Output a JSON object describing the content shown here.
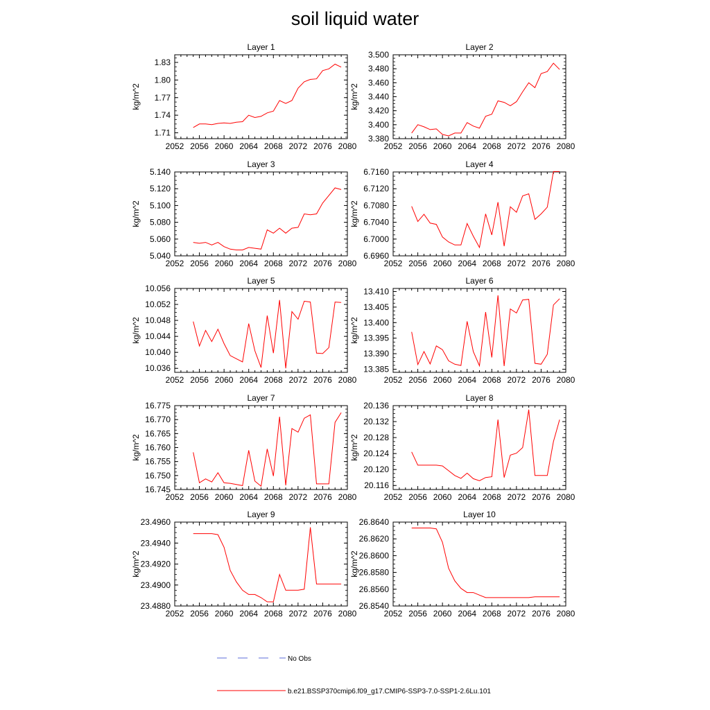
{
  "title": "soil liquid water",
  "chart_data": [
    {
      "type": "line",
      "title": "Layer 1",
      "ylabel": "kg/m^2",
      "xlim": [
        2052,
        2080
      ],
      "ylim": [
        1.7,
        1.843
      ],
      "xticks": [
        "2052",
        "2056",
        "2060",
        "2064",
        "2068",
        "2072",
        "2076",
        "2080"
      ],
      "yticks": [
        "1.71",
        "1.74",
        "1.77",
        "1.80",
        "1.83"
      ],
      "x": [
        2055,
        2056,
        2057,
        2058,
        2059,
        2060,
        2061,
        2062,
        2063,
        2064,
        2065,
        2066,
        2067,
        2068,
        2069,
        2070,
        2071,
        2072,
        2073,
        2074,
        2075,
        2076,
        2077,
        2078,
        2079
      ],
      "series": [
        {
          "name": "b.e21.BSSP370cmip6.f09_g17.CMIP6-SSP3-7.0-SSP1-2.6Lu.101",
          "color": "#ff0000",
          "values": [
            1.719,
            1.725,
            1.725,
            1.724,
            1.726,
            1.727,
            1.726,
            1.728,
            1.729,
            1.74,
            1.736,
            1.738,
            1.744,
            1.747,
            1.765,
            1.76,
            1.765,
            1.786,
            1.797,
            1.801,
            1.802,
            1.816,
            1.819,
            1.827,
            1.822
          ]
        }
      ]
    },
    {
      "type": "line",
      "title": "Layer 2",
      "ylabel": "kg/m^2",
      "xlim": [
        2052,
        2080
      ],
      "ylim": [
        3.38,
        3.5
      ],
      "xticks": [
        "2052",
        "2056",
        "2060",
        "2064",
        "2068",
        "2072",
        "2076",
        "2080"
      ],
      "yticks": [
        "3.380",
        "3.400",
        "3.420",
        "3.440",
        "3.460",
        "3.480",
        "3.500"
      ],
      "x": [
        2055,
        2056,
        2057,
        2058,
        2059,
        2060,
        2061,
        2062,
        2063,
        2064,
        2065,
        2066,
        2067,
        2068,
        2069,
        2070,
        2071,
        2072,
        2073,
        2074,
        2075,
        2076,
        2077,
        2078,
        2079
      ],
      "series": [
        {
          "name": "b.e21.BSSP370cmip6.f09_g17.CMIP6-SSP3-7.0-SSP1-2.6Lu.101",
          "color": "#ff0000",
          "values": [
            3.388,
            3.4,
            3.397,
            3.393,
            3.394,
            3.386,
            3.384,
            3.388,
            3.388,
            3.403,
            3.398,
            3.395,
            3.412,
            3.415,
            3.434,
            3.432,
            3.427,
            3.433,
            3.447,
            3.46,
            3.453,
            3.473,
            3.476,
            3.488,
            3.479
          ]
        }
      ]
    },
    {
      "type": "line",
      "title": "Layer 3",
      "ylabel": "kg/m^2",
      "xlim": [
        2052,
        2080
      ],
      "ylim": [
        5.04,
        5.14
      ],
      "xticks": [
        "2052",
        "2056",
        "2060",
        "2064",
        "2068",
        "2072",
        "2076",
        "2080"
      ],
      "yticks": [
        "5.040",
        "5.060",
        "5.080",
        "5.100",
        "5.120",
        "5.140"
      ],
      "x": [
        2055,
        2056,
        2057,
        2058,
        2059,
        2060,
        2061,
        2062,
        2063,
        2064,
        2065,
        2066,
        2067,
        2068,
        2069,
        2070,
        2071,
        2072,
        2073,
        2074,
        2075,
        2076,
        2077,
        2078,
        2079
      ],
      "series": [
        {
          "name": "b.e21.BSSP370cmip6.f09_g17.CMIP6-SSP3-7.0-SSP1-2.6Lu.101",
          "color": "#ff0000",
          "values": [
            5.056,
            5.055,
            5.056,
            5.053,
            5.056,
            5.051,
            5.048,
            5.047,
            5.047,
            5.05,
            5.049,
            5.048,
            5.071,
            5.067,
            5.073,
            5.067,
            5.073,
            5.074,
            5.09,
            5.089,
            5.09,
            5.103,
            5.112,
            5.121,
            5.119
          ]
        }
      ]
    },
    {
      "type": "line",
      "title": "Layer 4",
      "ylabel": "kg/m^2",
      "xlim": [
        2052,
        2080
      ],
      "ylim": [
        6.696,
        6.716
      ],
      "xticks": [
        "2052",
        "2056",
        "2060",
        "2064",
        "2068",
        "2072",
        "2076",
        "2080"
      ],
      "yticks": [
        "6.6960",
        "6.7000",
        "6.7040",
        "6.7080",
        "6.7120",
        "6.7160"
      ],
      "x": [
        2055,
        2056,
        2057,
        2058,
        2059,
        2060,
        2061,
        2062,
        2063,
        2064,
        2065,
        2066,
        2067,
        2068,
        2069,
        2070,
        2071,
        2072,
        2073,
        2074,
        2075,
        2076,
        2077,
        2078,
        2079
      ],
      "series": [
        {
          "name": "b.e21.BSSP370cmip6.f09_g17.CMIP6-SSP3-7.0-SSP1-2.6Lu.101",
          "color": "#ff0000",
          "values": [
            6.7078,
            6.7042,
            6.7059,
            6.7038,
            6.7035,
            6.7005,
            6.6993,
            6.6986,
            6.6986,
            6.7037,
            6.7007,
            6.698,
            6.706,
            6.701,
            6.7088,
            6.6983,
            6.7077,
            6.7064,
            6.7103,
            6.7108,
            6.7047,
            6.706,
            6.7076,
            6.7161,
            6.7161
          ]
        }
      ]
    },
    {
      "type": "line",
      "title": "Layer 5",
      "ylabel": "kg/m^2",
      "xlim": [
        2052,
        2080
      ],
      "ylim": [
        10.035,
        10.056
      ],
      "xticks": [
        "2052",
        "2056",
        "2060",
        "2064",
        "2068",
        "2072",
        "2076",
        "2080"
      ],
      "yticks": [
        "10.036",
        "10.040",
        "10.044",
        "10.048",
        "10.052",
        "10.056"
      ],
      "x": [
        2055,
        2056,
        2057,
        2058,
        2059,
        2060,
        2061,
        2062,
        2063,
        2064,
        2065,
        2066,
        2067,
        2068,
        2069,
        2070,
        2071,
        2072,
        2073,
        2074,
        2075,
        2076,
        2077,
        2078,
        2079
      ],
      "series": [
        {
          "name": "b.e21.BSSP370cmip6.f09_g17.CMIP6-SSP3-7.0-SSP1-2.6Lu.101",
          "color": "#ff0000",
          "values": [
            10.0477,
            10.0416,
            10.0455,
            10.0427,
            10.0458,
            10.0422,
            10.0392,
            10.0384,
            10.0376,
            10.0472,
            10.0404,
            10.0362,
            10.0492,
            10.0398,
            10.0531,
            10.036,
            10.0502,
            10.0483,
            10.0528,
            10.0526,
            10.0398,
            10.0397,
            10.0412,
            10.0526,
            10.0525
          ]
        }
      ]
    },
    {
      "type": "line",
      "title": "Layer 6",
      "ylabel": "kg/m^2",
      "xlim": [
        2052,
        2080
      ],
      "ylim": [
        13.384,
        13.411
      ],
      "xticks": [
        "2052",
        "2056",
        "2060",
        "2064",
        "2068",
        "2072",
        "2076",
        "2080"
      ],
      "yticks": [
        "13.385",
        "13.390",
        "13.395",
        "13.400",
        "13.405",
        "13.410"
      ],
      "x": [
        2055,
        2056,
        2057,
        2058,
        2059,
        2060,
        2061,
        2062,
        2063,
        2064,
        2065,
        2066,
        2067,
        2068,
        2069,
        2070,
        2071,
        2072,
        2073,
        2074,
        2075,
        2076,
        2077,
        2078,
        2079
      ],
      "series": [
        {
          "name": "b.e21.BSSP370cmip6.f09_g17.CMIP6-SSP3-7.0-SSP1-2.6Lu.101",
          "color": "#ff0000",
          "values": [
            13.397,
            13.3865,
            13.3907,
            13.3867,
            13.3925,
            13.3913,
            13.3877,
            13.3866,
            13.3862,
            13.4004,
            13.3907,
            13.3861,
            13.4034,
            13.3888,
            13.4088,
            13.386,
            13.4044,
            13.4031,
            13.4073,
            13.4075,
            13.3869,
            13.3866,
            13.3898,
            13.4057,
            13.4077
          ]
        }
      ]
    },
    {
      "type": "line",
      "title": "Layer 7",
      "ylabel": "kg/m^2",
      "xlim": [
        2052,
        2080
      ],
      "ylim": [
        16.745,
        16.775
      ],
      "xticks": [
        "2052",
        "2056",
        "2060",
        "2064",
        "2068",
        "2072",
        "2076",
        "2080"
      ],
      "yticks": [
        "16.745",
        "16.750",
        "16.755",
        "16.760",
        "16.765",
        "16.770",
        "16.775"
      ],
      "x": [
        2055,
        2056,
        2057,
        2058,
        2059,
        2060,
        2061,
        2062,
        2063,
        2064,
        2065,
        2066,
        2067,
        2068,
        2069,
        2070,
        2071,
        2072,
        2073,
        2074,
        2075,
        2076,
        2077,
        2078,
        2079
      ],
      "series": [
        {
          "name": "b.e21.BSSP370cmip6.f09_g17.CMIP6-SSP3-7.0-SSP1-2.6Lu.101",
          "color": "#ff0000",
          "values": [
            16.7583,
            16.7474,
            16.7488,
            16.7477,
            16.751,
            16.7474,
            16.7472,
            16.7468,
            16.7464,
            16.759,
            16.748,
            16.7462,
            16.7595,
            16.7498,
            16.771,
            16.7465,
            16.7668,
            16.7655,
            16.7705,
            16.7717,
            16.747,
            16.747,
            16.747,
            16.769,
            16.7725
          ]
        }
      ]
    },
    {
      "type": "line",
      "title": "Layer 8",
      "ylabel": "kg/m^2",
      "xlim": [
        2052,
        2080
      ],
      "ylim": [
        20.115,
        20.136
      ],
      "xticks": [
        "2052",
        "2056",
        "2060",
        "2064",
        "2068",
        "2072",
        "2076",
        "2080"
      ],
      "yticks": [
        "20.116",
        "20.120",
        "20.124",
        "20.128",
        "20.132",
        "20.136"
      ],
      "x": [
        2055,
        2056,
        2057,
        2058,
        2059,
        2060,
        2061,
        2062,
        2063,
        2064,
        2065,
        2066,
        2067,
        2068,
        2069,
        2070,
        2071,
        2072,
        2073,
        2074,
        2075,
        2076,
        2077,
        2078,
        2079
      ],
      "series": [
        {
          "name": "b.e21.BSSP370cmip6.f09_g17.CMIP6-SSP3-7.0-SSP1-2.6Lu.101",
          "color": "#ff0000",
          "values": [
            20.1244,
            20.1211,
            20.1211,
            20.1211,
            20.1211,
            20.1209,
            20.1197,
            20.1185,
            20.1178,
            20.1191,
            20.1177,
            20.1172,
            20.118,
            20.1182,
            20.1325,
            20.118,
            20.1236,
            20.1241,
            20.1255,
            20.135,
            20.1185,
            20.1185,
            20.1185,
            20.127,
            20.1325
          ]
        }
      ]
    },
    {
      "type": "line",
      "title": "Layer 9",
      "ylabel": "kg/m^2",
      "xlim": [
        2052,
        2080
      ],
      "ylim": [
        23.488,
        23.496
      ],
      "xticks": [
        "2052",
        "2056",
        "2060",
        "2064",
        "2068",
        "2072",
        "2076",
        "2080"
      ],
      "yticks": [
        "23.4880",
        "23.4900",
        "23.4920",
        "23.4940",
        "23.4960"
      ],
      "x": [
        2055,
        2056,
        2057,
        2058,
        2059,
        2060,
        2061,
        2062,
        2063,
        2064,
        2065,
        2066,
        2067,
        2068,
        2069,
        2070,
        2071,
        2072,
        2073,
        2074,
        2075,
        2076,
        2077,
        2078,
        2079
      ],
      "series": [
        {
          "name": "b.e21.BSSP370cmip6.f09_g17.CMIP6-SSP3-7.0-SSP1-2.6Lu.101",
          "color": "#ff0000",
          "values": [
            23.4949,
            23.4949,
            23.4949,
            23.4949,
            23.4948,
            23.4936,
            23.4914,
            23.4903,
            23.4895,
            23.4891,
            23.4891,
            23.4888,
            23.4884,
            23.4884,
            23.491,
            23.4895,
            23.4895,
            23.4895,
            23.4896,
            23.4955,
            23.4901,
            23.4901,
            23.4901,
            23.4901,
            23.4901
          ]
        }
      ]
    },
    {
      "type": "line",
      "title": "Layer 10",
      "ylabel": "kg/m^2",
      "xlim": [
        2052,
        2080
      ],
      "ylim": [
        26.854,
        26.864
      ],
      "xticks": [
        "2052",
        "2056",
        "2060",
        "2064",
        "2068",
        "2072",
        "2076",
        "2080"
      ],
      "yticks": [
        "26.8540",
        "26.8560",
        "26.8580",
        "26.8600",
        "26.8620",
        "26.8640"
      ],
      "x": [
        2055,
        2056,
        2057,
        2058,
        2059,
        2060,
        2061,
        2062,
        2063,
        2064,
        2065,
        2066,
        2067,
        2068,
        2069,
        2070,
        2071,
        2072,
        2073,
        2074,
        2075,
        2076,
        2077,
        2078,
        2079
      ],
      "series": [
        {
          "name": "b.e21.BSSP370cmip6.f09_g17.CMIP6-SSP3-7.0-SSP1-2.6Lu.101",
          "color": "#ff0000",
          "values": [
            26.8633,
            26.8633,
            26.8633,
            26.8633,
            26.8632,
            26.8616,
            26.8585,
            26.857,
            26.8561,
            26.8556,
            26.8556,
            26.8553,
            26.855,
            26.855,
            26.855,
            26.855,
            26.855,
            26.855,
            26.855,
            26.855,
            26.8551,
            26.8551,
            26.8551,
            26.8551,
            26.8551
          ]
        }
      ]
    }
  ],
  "legend": {
    "no_obs_label": "No Obs",
    "model_label": "b.e21.BSSP370cmip6.f09_g17.CMIP6-SSP3-7.0-SSP1-2.6Lu.101",
    "no_obs_color": "#5b6bd8",
    "model_color": "#ff0000"
  }
}
